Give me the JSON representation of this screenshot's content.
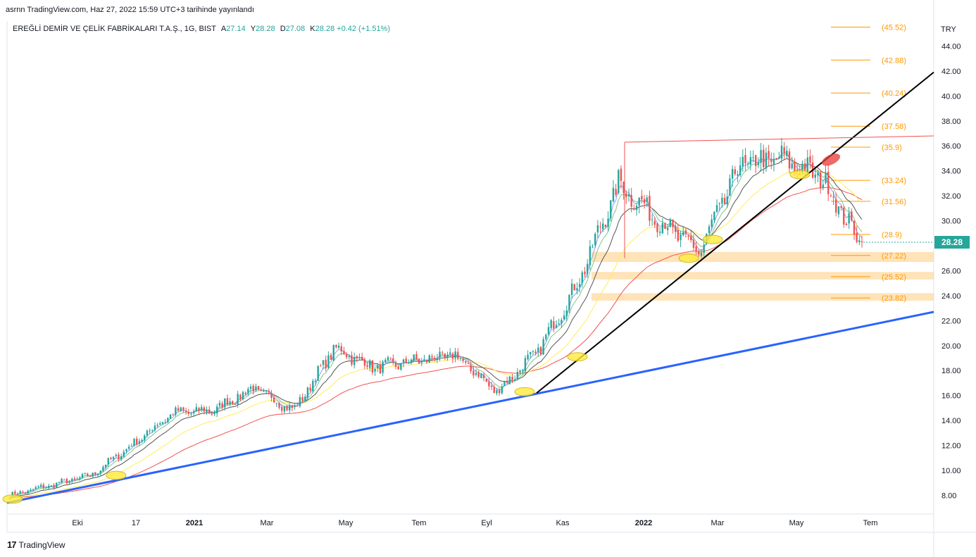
{
  "header": {
    "publish_line": "asrnn TradingView.com, Haz 27, 2022 15:59 UTC+3 tarihinde yayınlandı"
  },
  "legend": {
    "symbol": "EREĞLİ DEMİR VE ÇELİK FABRİKALARI T.A.Ş., 1G, BIST",
    "open_label": "A",
    "open": "27.14",
    "high_label": "Y",
    "high": "28.28",
    "low_label": "D",
    "low": "27.08",
    "close_label": "K",
    "close": "28.28",
    "change": "+0.42 (+1.51%)"
  },
  "footer": {
    "brand": "TradingView"
  },
  "colors": {
    "up": "#26a69a",
    "down": "#ef5350",
    "ema_fast": "#8e9cff",
    "ema_mid": "#81c784",
    "ema_slow": "#555555",
    "ma_yellow": "#ffee58",
    "ma_red": "#ef5350",
    "trend_blue": "#2962ff",
    "trend_black": "#000000",
    "resistance": "#ef5350",
    "fib_text": "#ff9800",
    "zone": "#ffcc80",
    "price_badge": "#26a69a"
  },
  "chart_data": {
    "type": "candlestick",
    "currency": "TRY",
    "ylim": [
      6.5,
      46
    ],
    "y_ticks": [
      "8.00",
      "10.00",
      "12.00",
      "14.00",
      "16.00",
      "18.00",
      "20.00",
      "22.00",
      "24.00",
      "26.00",
      "28.00",
      "30.00",
      "32.00",
      "34.00",
      "36.00",
      "38.00",
      "40.00",
      "42.00",
      "44.00"
    ],
    "x_ticks": [
      "Eki",
      "17",
      "2021",
      "Mar",
      "May",
      "Tem",
      "Eyl",
      "Kas",
      "2022",
      "Mar",
      "May",
      "Tem"
    ],
    "last_price": "28.28",
    "fib_levels": [
      {
        "label": "(45.52)",
        "value": 45.52
      },
      {
        "label": "(42.88)",
        "value": 42.88
      },
      {
        "label": "(40.24)",
        "value": 40.24
      },
      {
        "label": "(37.58)",
        "value": 37.58
      },
      {
        "label": "(35.9)",
        "value": 35.9
      },
      {
        "label": "(33.24)",
        "value": 33.24
      },
      {
        "label": "(31.56)",
        "value": 31.56
      },
      {
        "label": "(28.9)",
        "value": 28.9
      },
      {
        "label": "(27.22)",
        "value": 27.22
      },
      {
        "label": "(25.52)",
        "value": 25.52
      },
      {
        "label": "(23.82)",
        "value": 23.82
      }
    ],
    "zones": [
      [
        26.7,
        27.5
      ],
      [
        25.3,
        25.9
      ],
      [
        23.6,
        24.2
      ]
    ],
    "price_path_months": [
      "2020-09",
      "2020-10",
      "2020-11",
      "2020-12",
      "2021-01",
      "2021-02",
      "2021-03",
      "2021-04",
      "2021-05",
      "2021-06",
      "2021-07",
      "2021-08",
      "2021-09",
      "2021-10",
      "2021-11",
      "2021-12",
      "2022-01",
      "2022-02",
      "2022-03",
      "2022-04",
      "2022-05",
      "2022-06"
    ],
    "price_path_values": [
      8.0,
      8.8,
      9.6,
      12.0,
      14.6,
      14.8,
      16.6,
      14.8,
      19.8,
      18.2,
      18.8,
      19.2,
      16.3,
      19.5,
      25.0,
      33.0,
      30.0,
      27.5,
      34.5,
      35.0,
      33.5,
      28.0
    ]
  }
}
